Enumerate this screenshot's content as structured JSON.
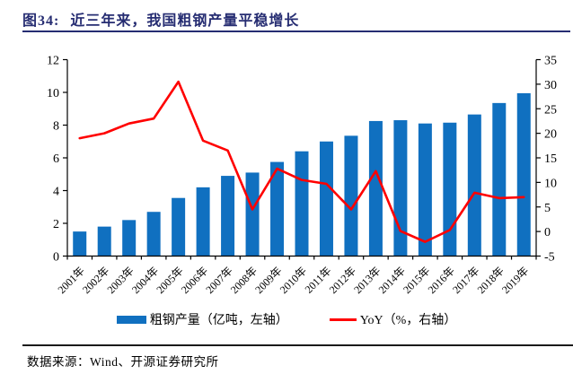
{
  "header": {
    "figure_label": "图34:",
    "title": "近三年来，我国粗钢产量平稳增长"
  },
  "footer": {
    "source": "数据来源：Wind、开源证券研究所"
  },
  "colors": {
    "bar": "#1070c0",
    "line": "#ff0000",
    "title_navy": "#262d72",
    "axis": "#000000"
  },
  "chart_data": {
    "type": "bar",
    "subtype": "bar+line combo, dual axis",
    "title": "近三年来，我国粗钢产量平稳增长",
    "categories": [
      "2001年",
      "2002年",
      "2003年",
      "2004年",
      "2005年",
      "2006年",
      "2007年",
      "2008年",
      "2009年",
      "2010年",
      "2011年",
      "2012年",
      "2013年",
      "2014年",
      "2015年",
      "2016年",
      "2017年",
      "2018年",
      "2019年"
    ],
    "series": [
      {
        "name": "粗钢产量（亿吨，左轴）",
        "type": "bar",
        "axis": "left",
        "values": [
          1.5,
          1.8,
          2.2,
          2.7,
          3.55,
          4.2,
          4.9,
          5.1,
          5.75,
          6.4,
          7.0,
          7.35,
          8.25,
          8.3,
          8.1,
          8.15,
          8.65,
          9.35,
          9.95
        ]
      },
      {
        "name": "YoY（%，右轴）",
        "type": "line",
        "axis": "right",
        "values": [
          19,
          20,
          22,
          23,
          30.5,
          18.5,
          16.5,
          4.5,
          12.8,
          10.5,
          9.7,
          4.5,
          12.3,
          0.1,
          -2.1,
          0.3,
          7.9,
          6.8,
          7.0
        ]
      }
    ],
    "left_axis": {
      "min": 0,
      "max": 12,
      "ticks": [
        0,
        2,
        4,
        6,
        8,
        10,
        12
      ]
    },
    "right_axis": {
      "min": -5,
      "max": 35,
      "ticks": [
        -5,
        0,
        5,
        10,
        15,
        20,
        25,
        30,
        35
      ]
    },
    "grid": false,
    "legend_position": "bottom",
    "xlabel": "",
    "ylabel_left": "",
    "ylabel_right": ""
  }
}
